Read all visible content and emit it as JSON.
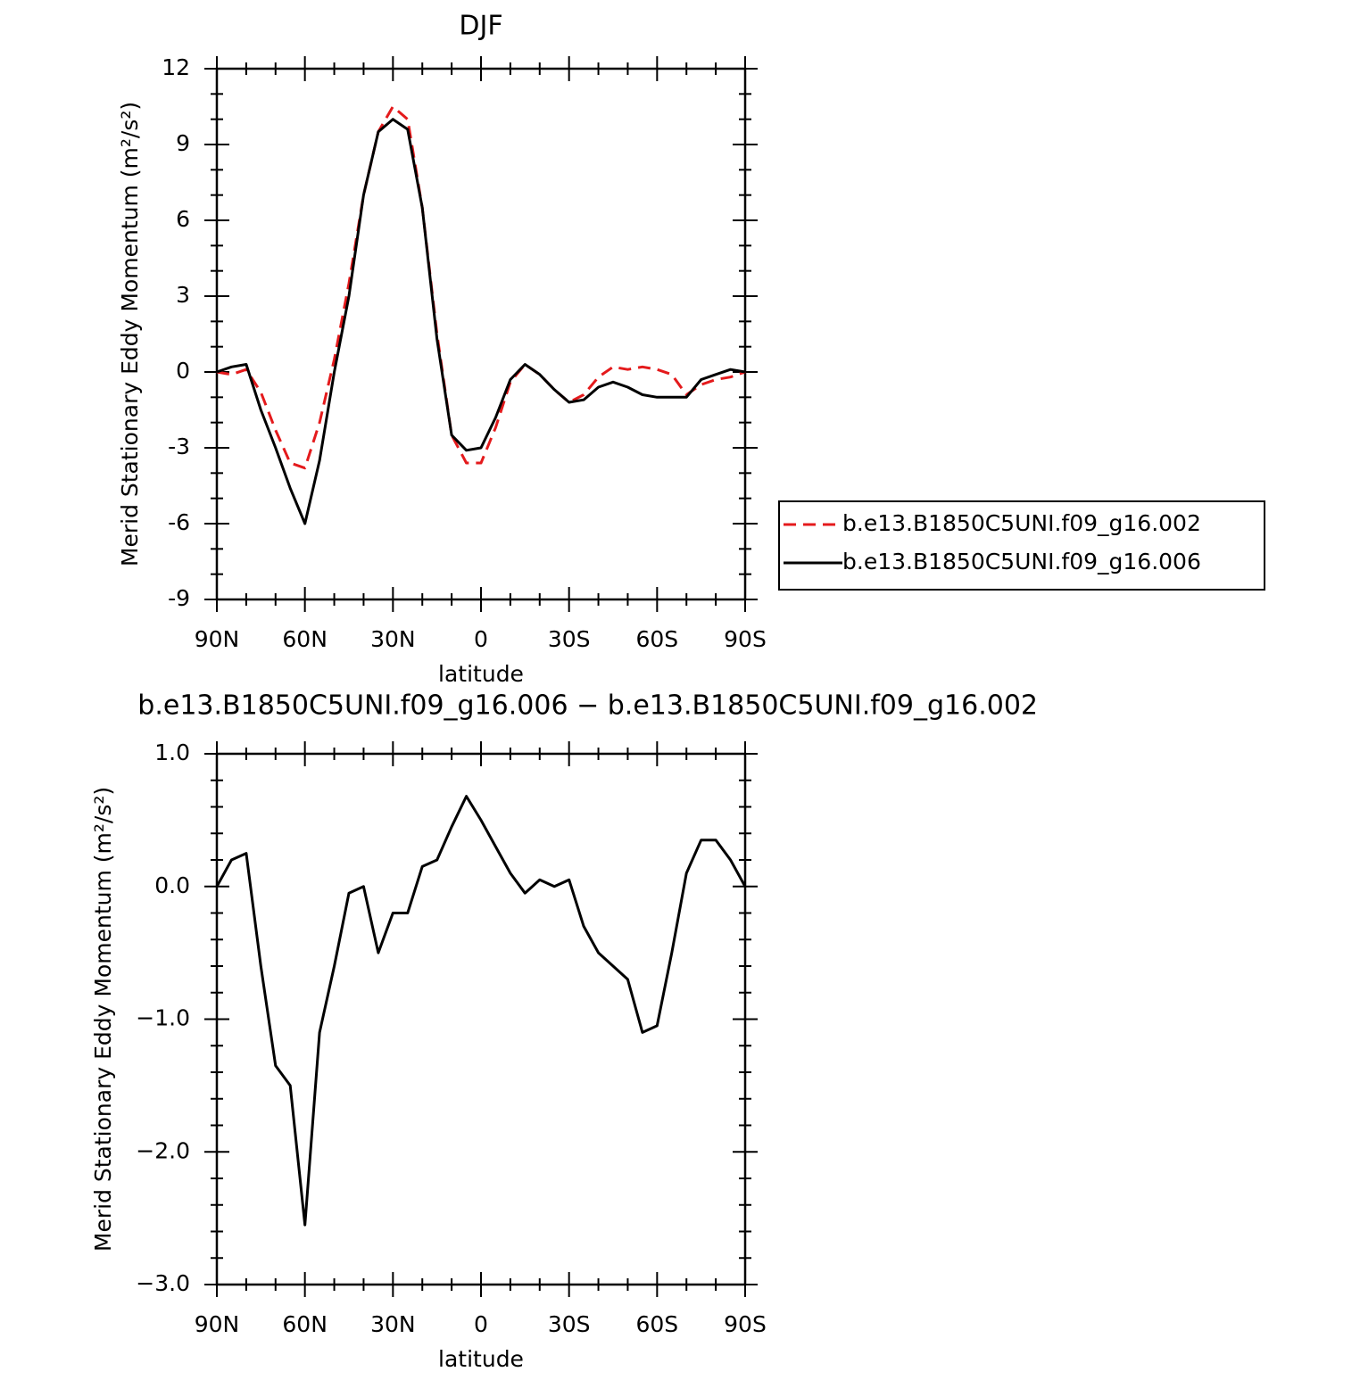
{
  "chart_data": [
    {
      "type": "line",
      "title": "DJF",
      "xlabel": "latitude",
      "ylabel": "Merid Stationary Eddy Momentum (m²/s²)",
      "x": [
        90,
        85,
        80,
        75,
        70,
        65,
        60,
        55,
        50,
        45,
        40,
        35,
        30,
        25,
        20,
        15,
        10,
        5,
        0,
        -5,
        -10,
        -15,
        -20,
        -25,
        -30,
        -35,
        -40,
        -45,
        -50,
        -55,
        -60,
        -65,
        -70,
        -75,
        -80,
        -85,
        -90
      ],
      "xlim": [
        90,
        -90
      ],
      "xticks": [
        {
          "value": 90,
          "label": "90N"
        },
        {
          "value": 60,
          "label": "60N"
        },
        {
          "value": 30,
          "label": "30N"
        },
        0,
        {
          "value": -30,
          "label": "30S"
        },
        {
          "value": -60,
          "label": "60S"
        },
        {
          "value": -90,
          "label": "90S"
        }
      ],
      "ylim": [
        -9,
        12
      ],
      "yticks": [
        -9,
        -6,
        -3,
        0,
        3,
        6,
        9,
        12
      ],
      "legend_position": "right",
      "series": [
        {
          "name": "b.e13.B1850C5UNI.f09_g16.002",
          "color": "#e41a1c",
          "line_style": "dashed",
          "values": [
            0,
            -0.1,
            0.1,
            -0.8,
            -2.3,
            -3.6,
            -3.8,
            -2.0,
            0.5,
            3.5,
            7.0,
            9.5,
            10.5,
            10.0,
            6.5,
            1.5,
            -2.5,
            -3.6,
            -3.6,
            -2.2,
            -0.4,
            0.3,
            -0.1,
            -0.7,
            -1.2,
            -0.9,
            -0.2,
            0.2,
            0.1,
            0.2,
            0.1,
            -0.1,
            -0.9,
            -0.5,
            -0.3,
            -0.2,
            0
          ]
        },
        {
          "name": "b.e13.B1850C5UNI.f09_g16.006",
          "color": "#000000",
          "line_style": "solid",
          "values": [
            0,
            0.2,
            0.3,
            -1.5,
            -3.0,
            -4.6,
            -6.0,
            -3.5,
            0.0,
            3.0,
            7.0,
            9.5,
            10.0,
            9.6,
            6.5,
            1.3,
            -2.5,
            -3.1,
            -3.0,
            -1.8,
            -0.3,
            0.3,
            -0.1,
            -0.7,
            -1.2,
            -1.1,
            -0.6,
            -0.4,
            -0.6,
            -0.9,
            -1.0,
            -1.0,
            -1.0,
            -0.3,
            -0.1,
            0.1,
            0
          ]
        }
      ]
    },
    {
      "type": "line",
      "title": "b.e13.B1850C5UNI.f09_g16.006 − b.e13.B1850C5UNI.f09_g16.002",
      "xlabel": "latitude",
      "ylabel": "Merid Stationary Eddy Momentum (m²/s²)",
      "x": [
        90,
        85,
        80,
        75,
        70,
        65,
        60,
        55,
        50,
        45,
        40,
        35,
        30,
        25,
        20,
        15,
        10,
        5,
        0,
        -5,
        -10,
        -15,
        -20,
        -25,
        -30,
        -35,
        -40,
        -45,
        -50,
        -55,
        -60,
        -65,
        -70,
        -75,
        -80,
        -85,
        -90
      ],
      "xlim": [
        90,
        -90
      ],
      "xticks": [
        {
          "value": 90,
          "label": "90N"
        },
        {
          "value": 60,
          "label": "60N"
        },
        {
          "value": 30,
          "label": "30N"
        },
        0,
        {
          "value": -30,
          "label": "30S"
        },
        {
          "value": -60,
          "label": "60S"
        },
        {
          "value": -90,
          "label": "90S"
        }
      ],
      "ylim": [
        -3,
        1
      ],
      "yticks": [
        {
          "value": -3,
          "label": "−3.0"
        },
        {
          "value": -2,
          "label": "−2.0"
        },
        {
          "value": -1,
          "label": "−1.0"
        },
        {
          "value": 0,
          "label": "0.0"
        },
        {
          "value": 1,
          "label": "1.0"
        }
      ],
      "series": [
        {
          "color": "#000000",
          "line_style": "solid",
          "values": [
            0,
            0.2,
            0.25,
            -0.6,
            -1.35,
            -1.5,
            -2.55,
            -1.1,
            -0.6,
            -0.05,
            0.0,
            -0.5,
            -0.2,
            -0.2,
            0.15,
            0.2,
            0.45,
            0.68,
            0.5,
            0.3,
            0.1,
            -0.05,
            0.05,
            0.0,
            0.05,
            -0.3,
            -0.5,
            -0.6,
            -0.7,
            -1.1,
            -1.05,
            -0.5,
            0.1,
            0.35,
            0.35,
            0.2,
            0
          ]
        }
      ]
    }
  ]
}
